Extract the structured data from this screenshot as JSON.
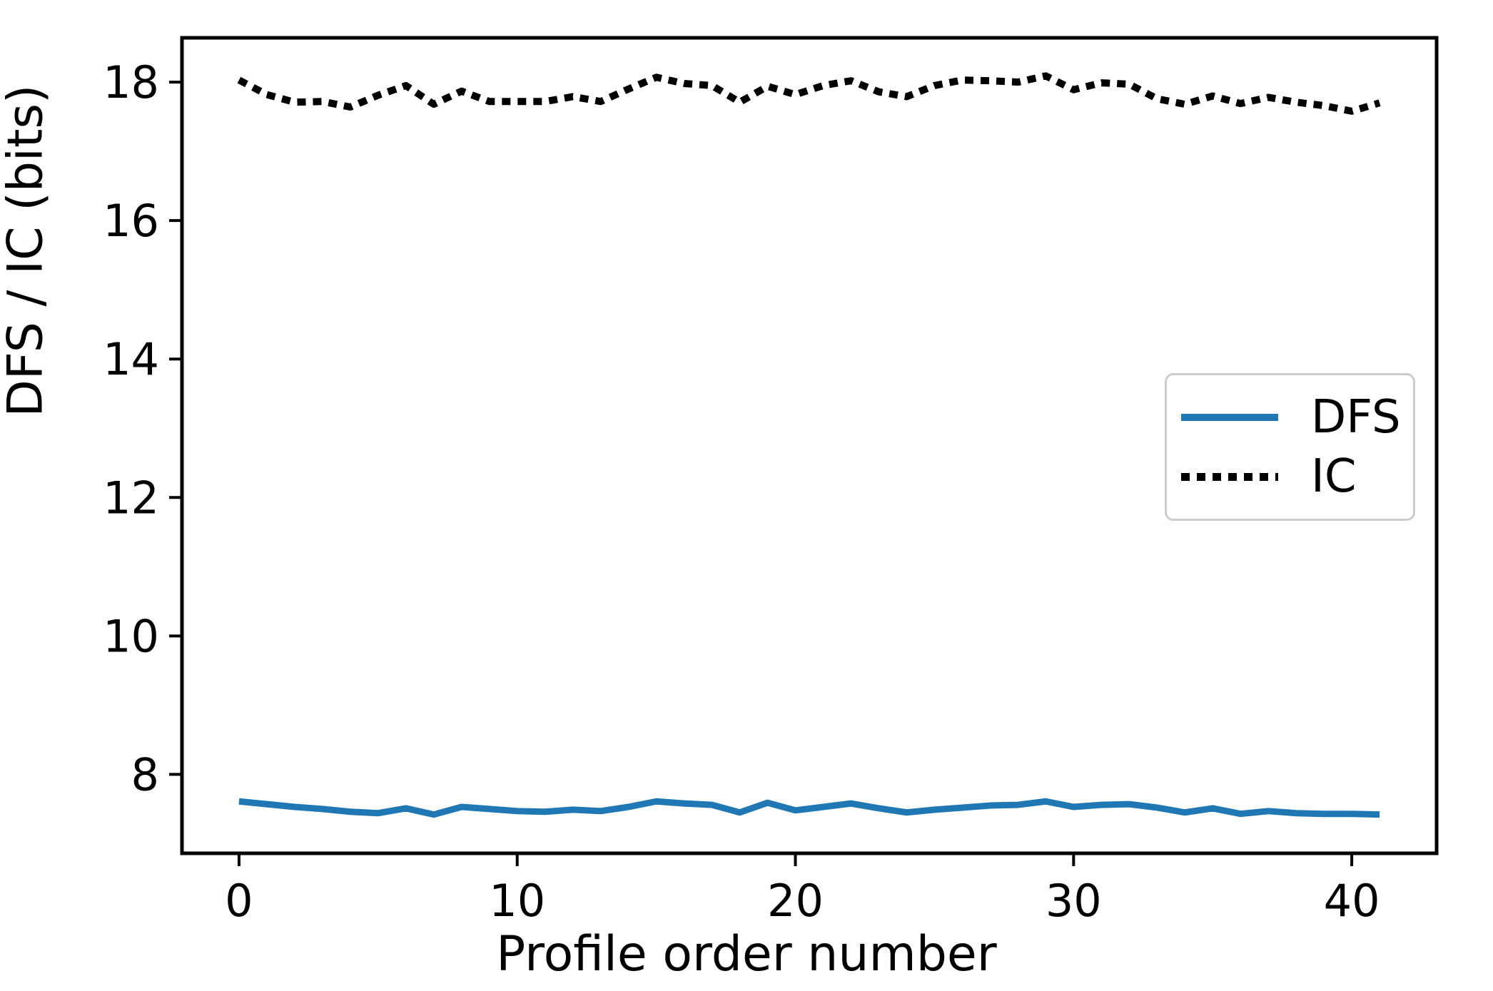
{
  "figure": {
    "background": "#ffffff",
    "spine_color": "#000000",
    "xlabel": "Profile order number",
    "ylabel": "DFS / IC (bits)"
  },
  "legend": {
    "items": [
      {
        "label": "DFS",
        "color": "#1f77b4",
        "style": "solid"
      },
      {
        "label": "IC",
        "color": "#000000",
        "style": "dotted"
      }
    ]
  },
  "chart_data": {
    "type": "line",
    "title": "",
    "xlabel": "Profile order number",
    "ylabel": "DFS / IC (bits)",
    "xlim": [
      -2.05,
      43.05
    ],
    "ylim": [
      6.86,
      18.64
    ],
    "xticks": [
      0,
      10,
      20,
      30,
      40
    ],
    "xtick_labels": [
      "0",
      "10",
      "20",
      "30",
      "40"
    ],
    "yticks": [
      8,
      10,
      12,
      14,
      16,
      18
    ],
    "ytick_labels": [
      "8",
      "10",
      "12",
      "14",
      "16",
      "18"
    ],
    "grid": false,
    "legend_position": "center right",
    "x": [
      0,
      1,
      2,
      3,
      4,
      5,
      6,
      7,
      8,
      9,
      10,
      11,
      12,
      13,
      14,
      15,
      16,
      17,
      18,
      19,
      20,
      21,
      22,
      23,
      24,
      25,
      26,
      27,
      28,
      29,
      30,
      31,
      32,
      33,
      34,
      35,
      36,
      37,
      38,
      39,
      40,
      41
    ],
    "series": [
      {
        "name": "DFS",
        "color": "#1f77b4",
        "style": "solid",
        "values": [
          7.61,
          7.57,
          7.53,
          7.5,
          7.46,
          7.44,
          7.51,
          7.42,
          7.53,
          7.5,
          7.47,
          7.46,
          7.49,
          7.47,
          7.53,
          7.61,
          7.58,
          7.56,
          7.45,
          7.59,
          7.48,
          7.53,
          7.58,
          7.51,
          7.45,
          7.49,
          7.52,
          7.55,
          7.56,
          7.61,
          7.53,
          7.56,
          7.57,
          7.52,
          7.45,
          7.51,
          7.43,
          7.47,
          7.44,
          7.43,
          7.43,
          7.42
        ]
      },
      {
        "name": "IC",
        "color": "#000000",
        "style": "dotted",
        "values": [
          18.03,
          17.82,
          17.71,
          17.72,
          17.64,
          17.81,
          17.95,
          17.68,
          17.87,
          17.72,
          17.72,
          17.72,
          17.79,
          17.72,
          17.9,
          18.07,
          17.98,
          17.95,
          17.71,
          17.94,
          17.82,
          17.95,
          18.02,
          17.86,
          17.79,
          17.95,
          18.03,
          18.02,
          18.0,
          18.09,
          17.89,
          17.99,
          17.97,
          17.76,
          17.68,
          17.8,
          17.69,
          17.78,
          17.71,
          17.66,
          17.58,
          17.7
        ]
      }
    ]
  }
}
